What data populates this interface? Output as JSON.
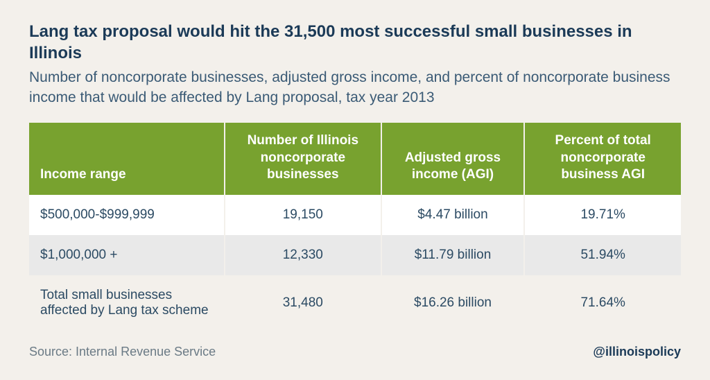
{
  "title": "Lang tax proposal would hit the 31,500 most successful small businesses in Illinois",
  "subtitle": "Number of noncorporate businesses, adjusted gross income, and percent of noncorporate business income that would be affected by Lang proposal, tax year 2013",
  "table": {
    "type": "table",
    "header_bg": "#78a22f",
    "header_text_color": "#ffffff",
    "row_odd_bg": "#ffffff",
    "row_even_bg": "#e9e9e9",
    "total_row_bg": "#f3f0eb",
    "text_color": "#2b4a63",
    "columns": [
      {
        "label": "Income range",
        "align": "left",
        "width_pct": 30
      },
      {
        "label": "Number of Illinois noncorporate businesses",
        "align": "center",
        "width_pct": 24
      },
      {
        "label": "Adjusted gross income (AGI)",
        "align": "center",
        "width_pct": 22
      },
      {
        "label": "Percent of total noncorporate business AGI",
        "align": "center",
        "width_pct": 24
      }
    ],
    "rows": [
      [
        "$500,000-$999,999",
        "19,150",
        "$4.47 billion",
        "19.71%"
      ],
      [
        "$1,000,000 +",
        "12,330",
        "$11.79 billion",
        "51.94%"
      ],
      [
        "Total small businesses affected by Lang tax scheme",
        "31,480",
        "$16.26 billion",
        "71.64%"
      ]
    ]
  },
  "source": "Source: Internal Revenue Service",
  "handle": "@illinoispolicy",
  "style": {
    "background_color": "#f3f0eb",
    "title_color": "#1b3a57",
    "subtitle_color": "#3a5a75",
    "title_fontsize": 24,
    "subtitle_fontsize": 21,
    "body_fontsize": 19
  }
}
